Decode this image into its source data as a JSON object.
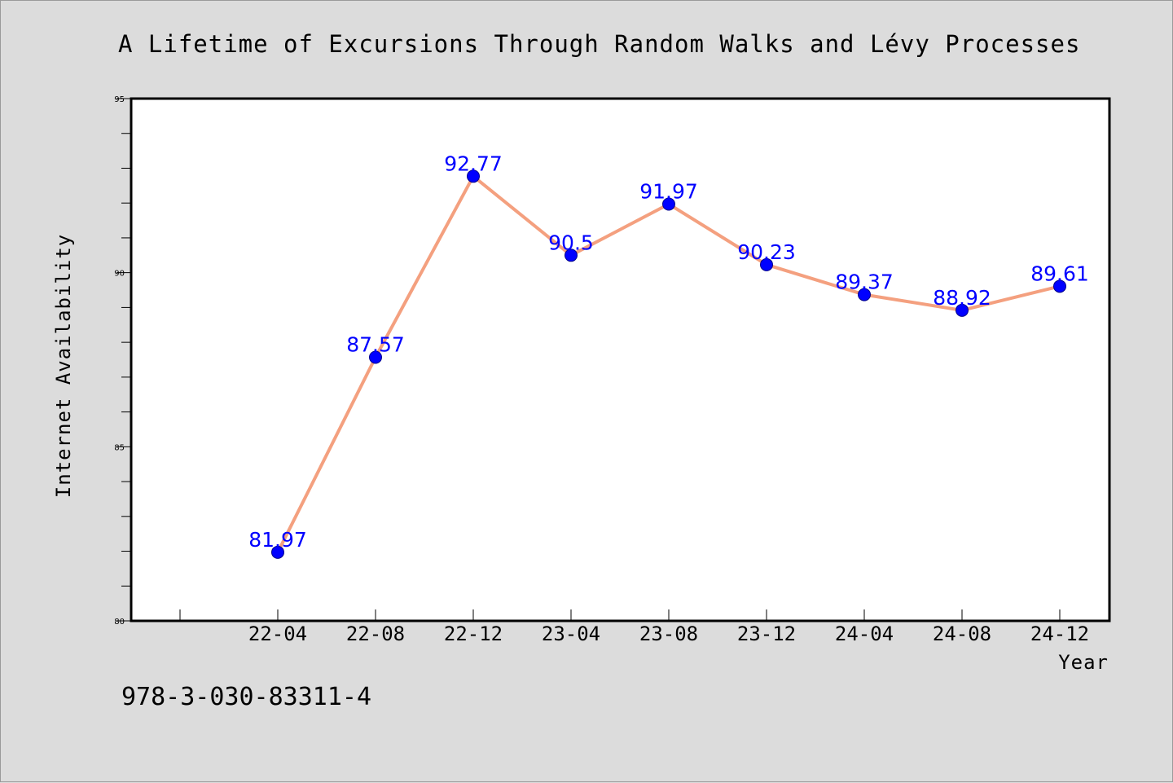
{
  "chart_data": {
    "type": "line",
    "title": "A Lifetime of Excursions Through Random Walks and Lévy Processes",
    "xlabel": "Year",
    "ylabel": "Internet Availability",
    "categories": [
      "22-04",
      "22-08",
      "22-12",
      "23-04",
      "23-08",
      "23-12",
      "24-04",
      "24-08",
      "24-12"
    ],
    "series": [
      {
        "values": [
          81.97,
          87.57,
          92.77,
          90.5,
          91.97,
          90.23,
          89.37,
          88.92,
          89.61
        ],
        "labels": [
          "81.97",
          "87.57",
          "92.77",
          "90.5",
          "91.97",
          "90.23",
          "89.37",
          "88.92",
          "89.61"
        ],
        "line_color": "#f4a07f",
        "marker_color": "#0000ff"
      }
    ],
    "ylim": [
      80,
      95
    ],
    "yticks": [
      "80",
      "85",
      "90",
      "95"
    ],
    "grid": false,
    "legend": "none"
  },
  "footer": {
    "isbn": "978-3-030-83311-4"
  }
}
